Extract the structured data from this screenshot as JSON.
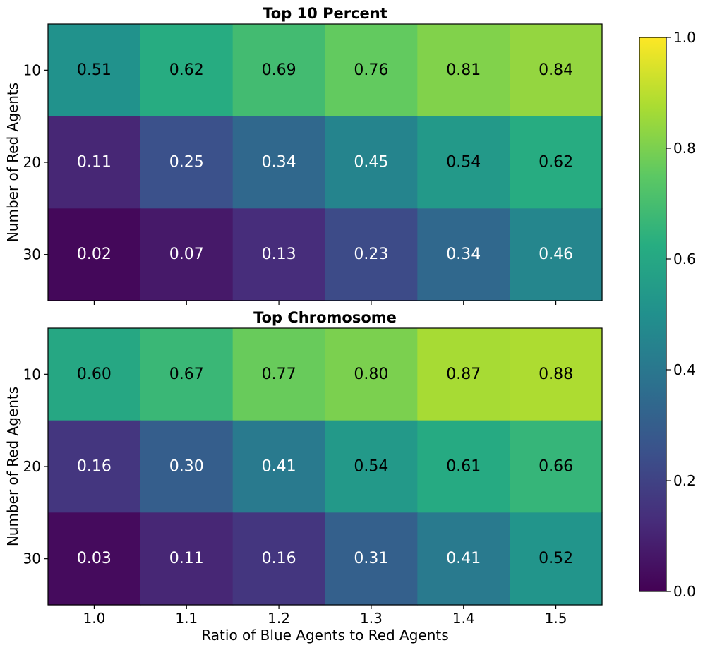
{
  "chart_data": [
    {
      "type": "heatmap",
      "title": "Top 10 Percent",
      "xlabel": "",
      "ylabel": "Number of Red Agents",
      "x_categories": [
        "1.0",
        "1.1",
        "1.2",
        "1.3",
        "1.4",
        "1.5"
      ],
      "y_categories": [
        "10",
        "20",
        "30"
      ],
      "values": [
        [
          0.51,
          0.62,
          0.69,
          0.76,
          0.81,
          0.84
        ],
        [
          0.11,
          0.25,
          0.34,
          0.45,
          0.54,
          0.62
        ],
        [
          0.02,
          0.07,
          0.13,
          0.23,
          0.34,
          0.46
        ]
      ],
      "value_labels": [
        [
          "0.51",
          "0.62",
          "0.69",
          "0.76",
          "0.81",
          "0.84"
        ],
        [
          "0.11",
          "0.25",
          "0.34",
          "0.45",
          "0.54",
          "0.62"
        ],
        [
          "0.02",
          "0.07",
          "0.13",
          "0.23",
          "0.34",
          "0.46"
        ]
      ],
      "x_ticks_labeled": false
    },
    {
      "type": "heatmap",
      "title": "Top Chromosome",
      "xlabel": "Ratio of Blue Agents to Red Agents",
      "ylabel": "Number of Red Agents",
      "x_categories": [
        "1.0",
        "1.1",
        "1.2",
        "1.3",
        "1.4",
        "1.5"
      ],
      "y_categories": [
        "10",
        "20",
        "30"
      ],
      "values": [
        [
          0.6,
          0.67,
          0.77,
          0.8,
          0.87,
          0.88
        ],
        [
          0.16,
          0.3,
          0.41,
          0.54,
          0.61,
          0.66
        ],
        [
          0.03,
          0.11,
          0.16,
          0.31,
          0.41,
          0.52
        ]
      ],
      "value_labels": [
        [
          "0.60",
          "0.67",
          "0.77",
          "0.80",
          "0.87",
          "0.88"
        ],
        [
          "0.16",
          "0.30",
          "0.41",
          "0.54",
          "0.61",
          "0.66"
        ],
        [
          "0.03",
          "0.11",
          "0.16",
          "0.31",
          "0.41",
          "0.52"
        ]
      ],
      "x_ticks_labeled": true
    }
  ],
  "colorbar": {
    "colormap": "viridis",
    "range": [
      0.0,
      1.0
    ],
    "ticks": [
      0.0,
      0.2,
      0.4,
      0.6,
      0.8,
      1.0
    ],
    "tick_labels": [
      "0.0",
      "0.2",
      "0.4",
      "0.6",
      "0.8",
      "1.0"
    ]
  },
  "colors": {
    "dark_text": "#000000",
    "light_text": "#ffffff",
    "frame": "#000000"
  }
}
